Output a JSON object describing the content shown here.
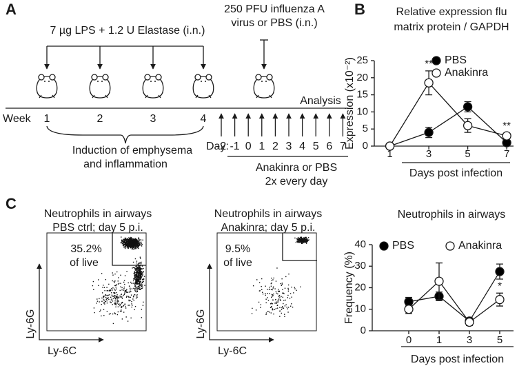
{
  "panel_labels": [
    "A",
    "B",
    "C"
  ],
  "schedule": {
    "lps_label": "7 µg LPS + 1.2 U Elastase (i.n.)",
    "virus_label": [
      "250 PFU influenza A",
      "virus or PBS (i.n.)"
    ],
    "analysis_label": "Analysis",
    "week_label": "Week",
    "weeks": [
      "1",
      "2",
      "3",
      "4"
    ],
    "induction_label": [
      "Induction of emphysema",
      "and inflammation"
    ],
    "day_label": "Day:",
    "days": [
      "-2",
      "-1",
      "0",
      "1",
      "2",
      "3",
      "4",
      "5",
      "6",
      "7"
    ],
    "treatment_label": [
      "Anakinra or PBS",
      "2x every day"
    ]
  },
  "flow_plots": [
    {
      "title": [
        "Neutrophils in airways",
        "PBS ctrl; day 5 p.i."
      ],
      "gate_label": [
        "35.2%",
        "of live"
      ],
      "y_label": "Ly-6G",
      "x_label": "Ly-6C"
    },
    {
      "title": [
        "Neutrophils in airways",
        "Anakinra; day 5 p.i."
      ],
      "gate_label": [
        "9.5%",
        "of live"
      ],
      "y_label": "Ly-6G",
      "x_label": "Ly-6C"
    }
  ],
  "chart_data": [
    {
      "type": "line",
      "title": [
        "Relative expression flu",
        "matrix protein / GAPDH"
      ],
      "x_label": "Days post infection",
      "y_label": "Expression (x10⁻²)",
      "x": [
        1,
        3,
        5,
        7
      ],
      "xlim": [
        0.2,
        7.35
      ],
      "xticks": [
        1,
        3,
        5,
        7
      ],
      "ylim": [
        0,
        25
      ],
      "yticks": [
        0,
        5,
        10,
        15,
        20,
        25
      ],
      "legend": "top-right",
      "series": [
        {
          "name": "PBS",
          "color": "#000000",
          "values": [
            0,
            4,
            11.5,
            1
          ],
          "errors": [
            0,
            1.5,
            1.5,
            0.5
          ]
        },
        {
          "name": "Anakinra",
          "color": "#ffffff",
          "values": [
            0,
            18.5,
            6,
            3
          ],
          "errors": [
            0,
            3.5,
            2,
            0.8
          ]
        }
      ],
      "annotations": [
        {
          "text": "**",
          "x": 3
        },
        {
          "text": "**",
          "x": 7
        }
      ]
    },
    {
      "type": "line",
      "title": "Neutrophils in airways",
      "x_label": "Days post infection",
      "y_label": "Frequency (%)",
      "categories": [
        "0",
        "1",
        "3",
        "5"
      ],
      "ylim": [
        0,
        40
      ],
      "yticks": [
        0,
        10,
        20,
        30,
        40
      ],
      "legend": "top",
      "series": [
        {
          "name": "PBS",
          "color": "#000000",
          "values": [
            13.5,
            16,
            4.5,
            27.5
          ],
          "errors": [
            2,
            2,
            1.5,
            3.5
          ]
        },
        {
          "name": "Anakinra",
          "color": "#ffffff",
          "values": [
            10,
            23,
            4,
            14.5
          ],
          "errors": [
            2,
            8.5,
            1.5,
            3
          ]
        }
      ],
      "annotations": [
        {
          "text": "*",
          "x": "5"
        }
      ]
    }
  ]
}
